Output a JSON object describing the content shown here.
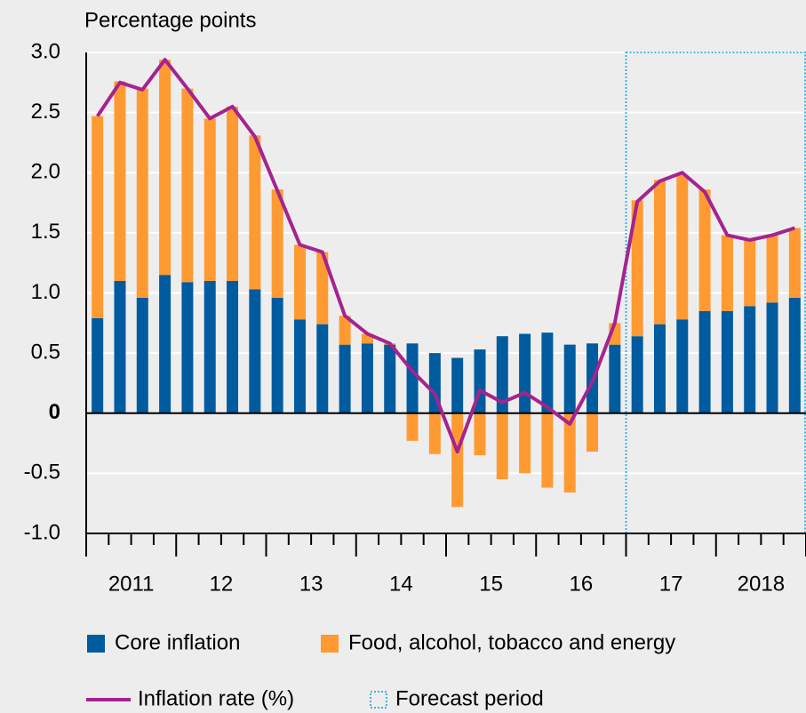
{
  "chart_data": {
    "type": "stacked_bar_line",
    "title": "Percentage points",
    "year_labels": [
      "2011",
      "12",
      "13",
      "14",
      "15",
      "16",
      "17",
      "2018"
    ],
    "categories": [
      null,
      null,
      null,
      null,
      null,
      null,
      null,
      null,
      null,
      null,
      null,
      null,
      null,
      null,
      null,
      null,
      null,
      null,
      null,
      null,
      null,
      null,
      null,
      null,
      null,
      null,
      null,
      null,
      null,
      null,
      null,
      null
    ],
    "series": [
      {
        "name": "Core inflation",
        "color": "#005b9f",
        "kind": "bar",
        "values": [
          0.79,
          1.1,
          0.96,
          1.15,
          1.09,
          1.1,
          1.1,
          1.03,
          0.96,
          0.78,
          0.74,
          0.57,
          0.58,
          0.57,
          0.58,
          0.5,
          0.46,
          0.53,
          0.64,
          0.66,
          0.67,
          0.57,
          0.58,
          0.57,
          0.64,
          0.74,
          0.78,
          0.85,
          0.85,
          0.89,
          0.92,
          0.96
        ]
      },
      {
        "name": "Food, alcohol, tobacco and energy",
        "color": "#ff9a33",
        "kind": "bar",
        "values": [
          1.68,
          1.66,
          1.74,
          1.79,
          1.61,
          1.35,
          1.45,
          1.28,
          0.9,
          0.62,
          0.6,
          0.24,
          0.08,
          0.01,
          -0.23,
          -0.34,
          -0.78,
          -0.35,
          -0.55,
          -0.5,
          -0.62,
          -0.66,
          -0.32,
          0.18,
          1.13,
          1.2,
          1.2,
          1.01,
          0.63,
          0.55,
          0.56,
          0.58
        ]
      },
      {
        "name": "Inflation rate (%)",
        "color": "#a5238f",
        "kind": "line",
        "values": [
          2.47,
          2.75,
          2.69,
          2.94,
          2.7,
          2.45,
          2.55,
          2.3,
          1.85,
          1.4,
          1.34,
          0.81,
          0.66,
          0.58,
          0.35,
          0.16,
          -0.32,
          0.19,
          0.09,
          0.17,
          0.05,
          -0.09,
          0.26,
          0.75,
          1.76,
          1.93,
          2.0,
          1.84,
          1.48,
          1.44,
          1.48,
          1.54
        ]
      }
    ],
    "forecast": {
      "label": "Forecast period",
      "start_index": 24,
      "color": "#3fb3e0"
    },
    "ylim": [
      -1.0,
      3.0
    ],
    "yticks": [
      {
        "value": -1.0,
        "label": "-1.0"
      },
      -0.5,
      0,
      0.5,
      {
        "value": 1.0,
        "label": "1.0"
      },
      1.5,
      {
        "value": 2.0,
        "label": "2.0"
      },
      2.5,
      {
        "value": 3.0,
        "label": "3.0"
      }
    ],
    "grid": true
  }
}
